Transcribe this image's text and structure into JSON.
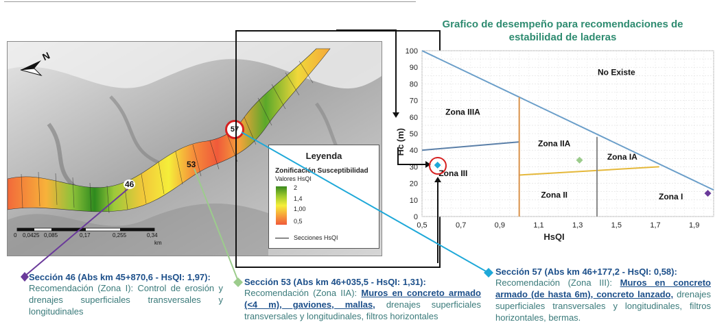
{
  "north_arrow": "N",
  "map": {
    "legend": {
      "title": "Leyenda",
      "subtitle": "Zonificación Susceptibilidad",
      "values_label": "Valores HsQI",
      "scale_values": [
        "2",
        "1,4",
        "1,00",
        "0,5"
      ],
      "line_label": "Secciones HsQI"
    },
    "section_markers": [
      "46",
      "53",
      "57"
    ],
    "scale_bar": {
      "labels": [
        "0",
        "0,0425",
        "0,085",
        "0,17",
        "0,255",
        "0,34"
      ],
      "unit": "km"
    }
  },
  "chart_title": "Grafico de desempeño para recomendaciones de estabilidad de laderas",
  "chart_data": {
    "type": "scatter",
    "xlabel": "HsQI",
    "ylabel": "Hc (m)",
    "xlim": [
      0.5,
      2.0
    ],
    "ylim": [
      0,
      100
    ],
    "x_ticks": [
      "0,5",
      "0,7",
      "0,9",
      "1,1",
      "1,3",
      "1,5",
      "1,7",
      "1,9"
    ],
    "y_ticks": [
      "0",
      "10",
      "20",
      "30",
      "40",
      "50",
      "60",
      "70",
      "80",
      "90",
      "100"
    ],
    "boundary_lines": [
      {
        "color": "#6a9ec9",
        "points": [
          [
            0.5,
            100
          ],
          [
            2.0,
            16
          ]
        ]
      },
      {
        "color": "#5a7fa8",
        "points": [
          [
            0.5,
            40
          ],
          [
            1.0,
            45
          ]
        ]
      },
      {
        "color": "#e5b83a",
        "points": [
          [
            1.0,
            25
          ],
          [
            1.72,
            30
          ]
        ]
      },
      {
        "color": "#d9924a",
        "points": [
          [
            1.0,
            0
          ],
          [
            1.0,
            72
          ]
        ]
      },
      {
        "color": "#8a8a8a",
        "points": [
          [
            1.4,
            0
          ],
          [
            1.4,
            48
          ]
        ]
      }
    ],
    "zones": [
      {
        "label": "No Existe",
        "x": 1.5,
        "y": 87
      },
      {
        "label": "Zona IIIA",
        "x": 0.71,
        "y": 63
      },
      {
        "label": "Zona IIA",
        "x": 1.18,
        "y": 44
      },
      {
        "label": "Zona IA",
        "x": 1.53,
        "y": 36
      },
      {
        "label": "Zona III",
        "x": 0.66,
        "y": 26
      },
      {
        "label": "Zona II",
        "x": 1.18,
        "y": 13
      },
      {
        "label": "Zona I",
        "x": 1.78,
        "y": 12
      }
    ],
    "points": [
      {
        "x": 0.58,
        "y": 31,
        "color": "#1ea8d8"
      },
      {
        "x": 1.31,
        "y": 34,
        "color": "#9ccc8c"
      },
      {
        "x": 1.97,
        "y": 14,
        "color": "#6a3a9a"
      }
    ]
  },
  "sections": {
    "s46": {
      "title": "Sección 46 (Abs km 45+870,6 - HsQI: 1,97):",
      "text": "Recomendación (Zona I): Control de erosión y drenajes superficiales transversales y longitudinales",
      "color": "#6a3a9a"
    },
    "s53": {
      "title": "Sección 53 (Abs km 46+035,5 - HsQI: 1,31):",
      "lead": "Recomendación (Zona IIA): ",
      "emph": "Muros en concreto armado (<4 m), gaviones, mallas,",
      "rest": " drenajes superficiales transversales y longitudinales, filtros horizontales",
      "color": "#9ccc8c"
    },
    "s57": {
      "title": "Sección 57 (Abs km 46+177,2 - HsQI: 0,58):",
      "lead": "Recomendación (Zona III): ",
      "emph": "Muros en concreto armado (de hasta 6m), concreto lanzado,",
      "rest": " drenajes superficiales transversales y longitudinales, filtros horizontales, bermas.",
      "color": "#1ea8d8"
    }
  }
}
